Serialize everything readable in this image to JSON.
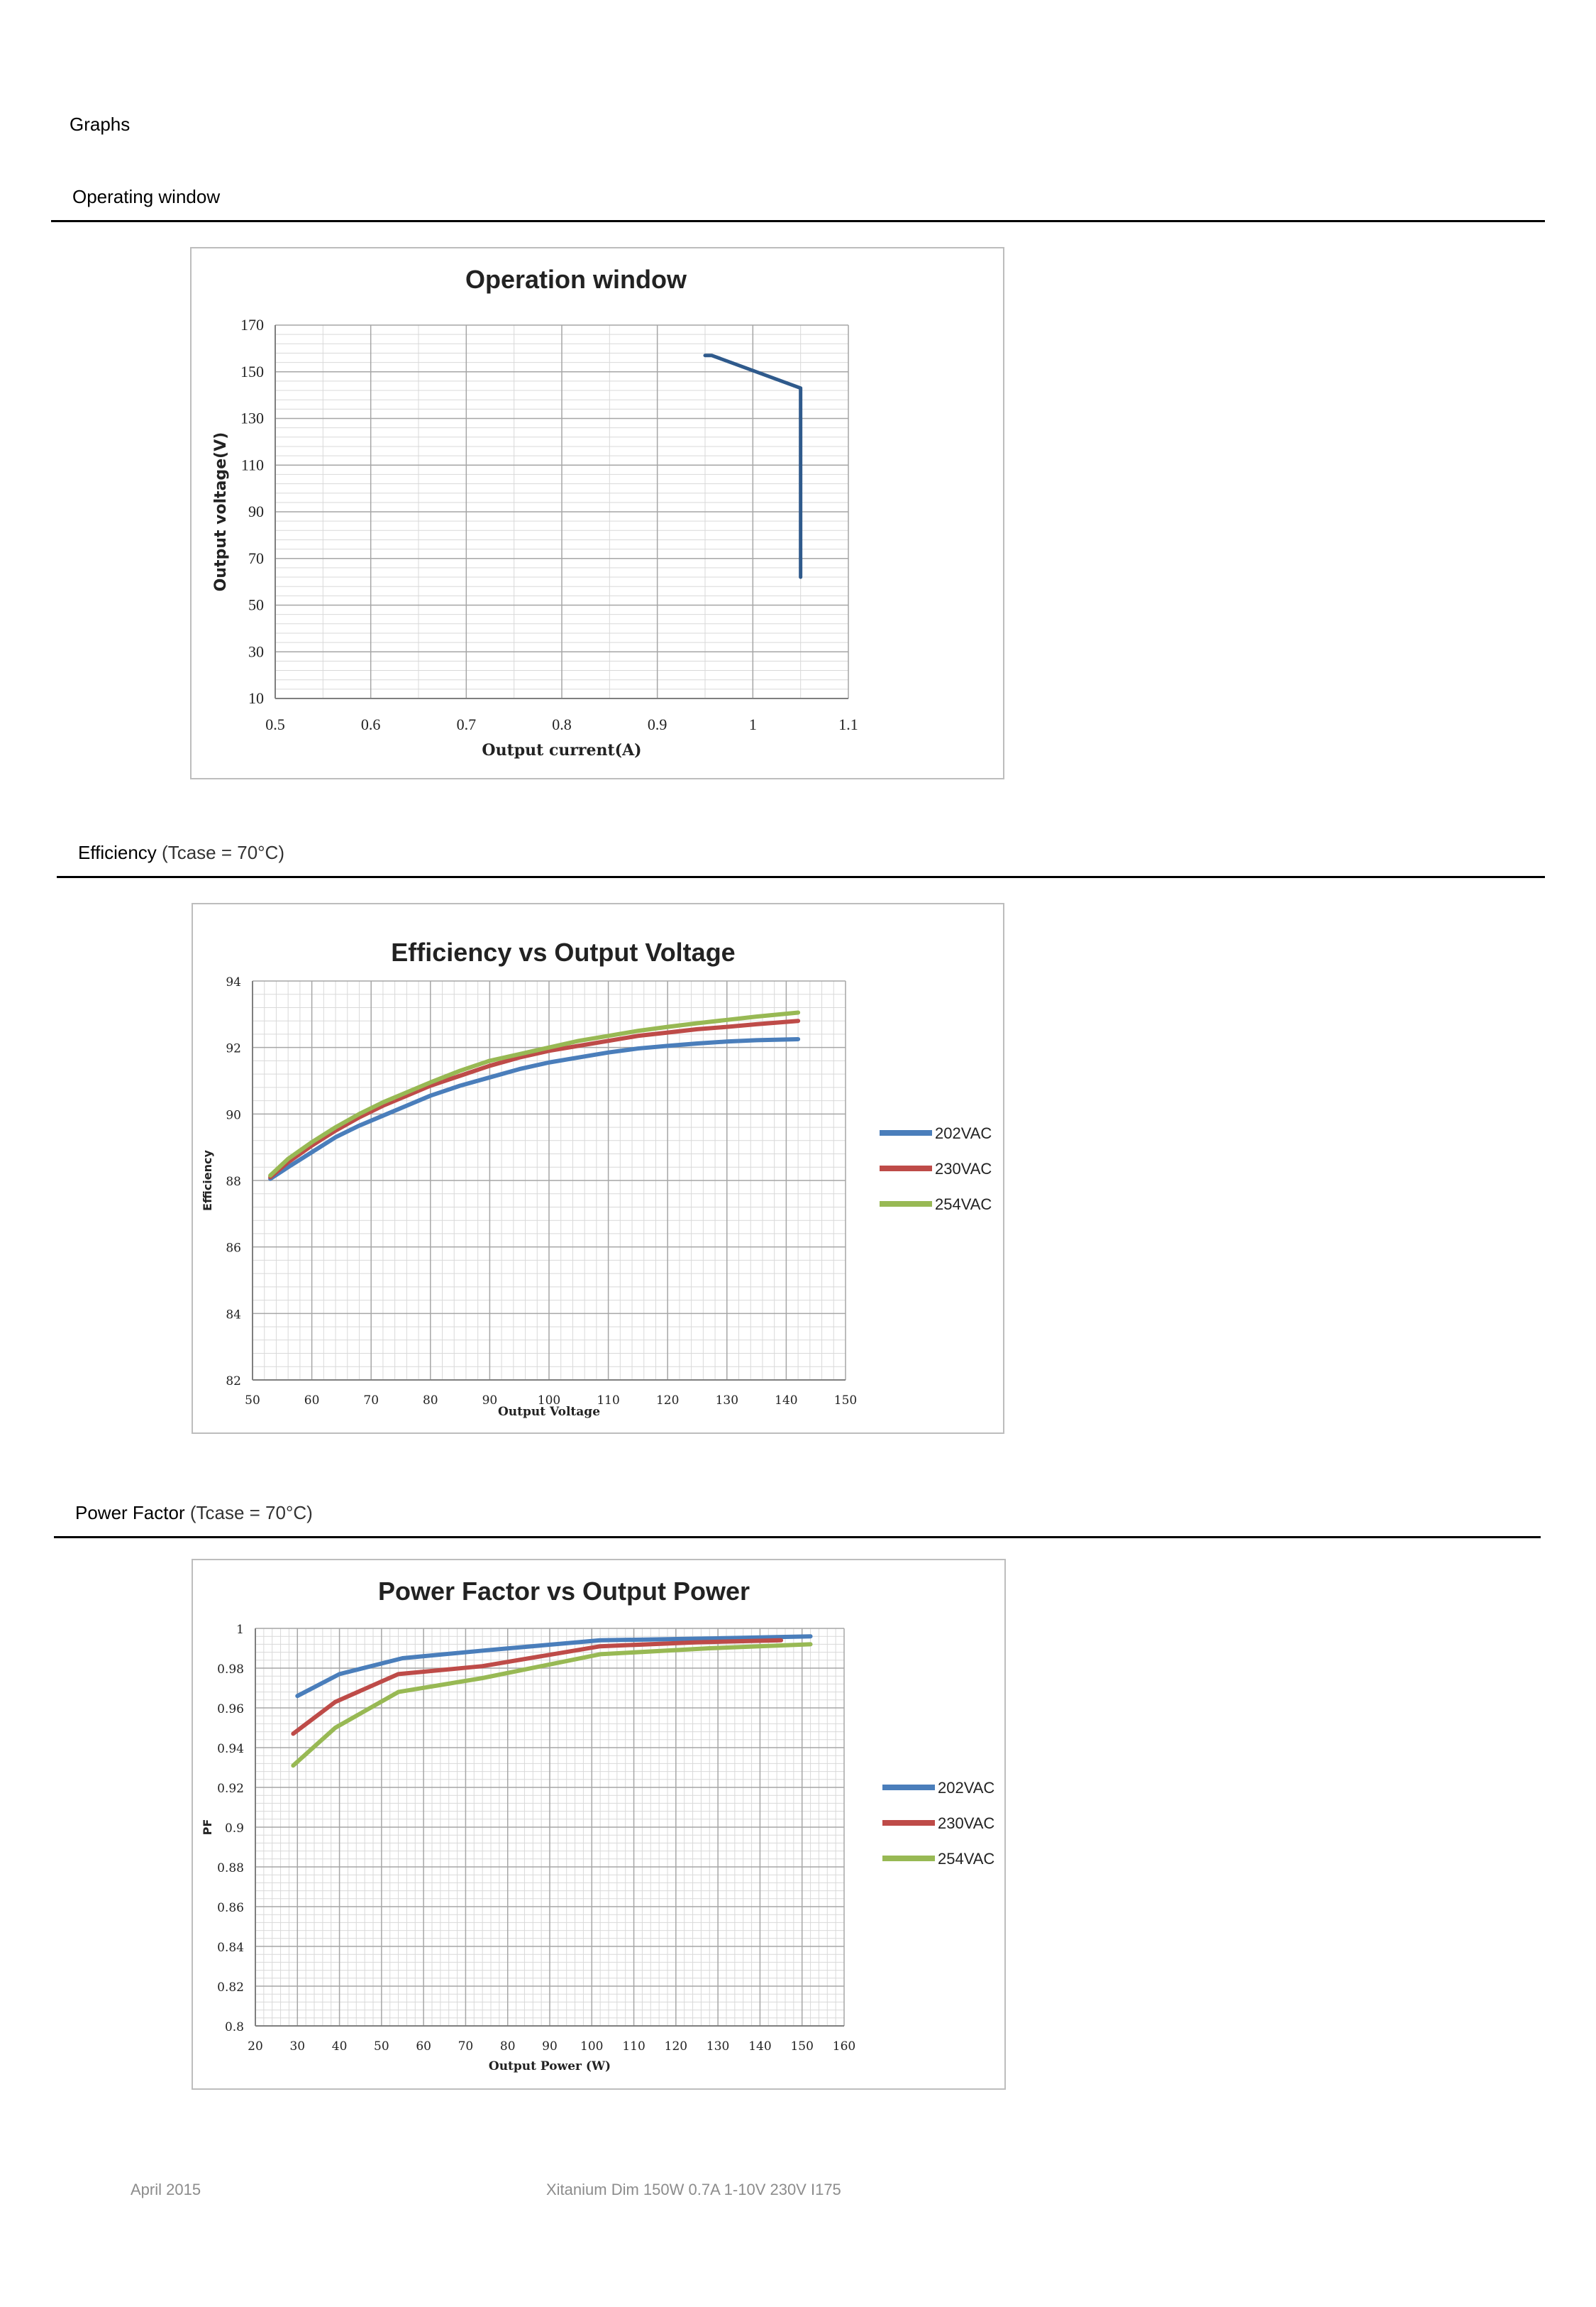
{
  "page": {
    "section_title": "Graphs",
    "headings": {
      "operating": {
        "label": "Operating window",
        "condition": ""
      },
      "efficiency": {
        "label": "Efficiency",
        "condition": "(Tcase = 70°C)"
      },
      "power_factor": {
        "label": "Power Factor",
        "condition": "(Tcase = 70°C)"
      }
    },
    "footer": {
      "date": "April 2015",
      "product": "Xitanium Dim 150W 0.7A 1-10V 230V I175"
    }
  },
  "colors": {
    "s202": "#4a7ebb",
    "s230": "#be4b48",
    "s254": "#98b954",
    "window": "#2f5a8c"
  },
  "chart_data": [
    {
      "type": "line",
      "title": "Operation window",
      "xlabel": "Output current(A)",
      "ylabel": "Output  voltage(V)",
      "xlim": [
        0.5,
        1.1
      ],
      "ylim": [
        10,
        170
      ],
      "xticks": [
        0.5,
        0.6,
        0.7,
        0.8,
        0.9,
        1,
        1.1
      ],
      "yticks": [
        10,
        30,
        50,
        70,
        90,
        110,
        130,
        150,
        170
      ],
      "legend": "none",
      "grid": true,
      "series": [
        {
          "name": "",
          "x": [
            0.95,
            0.957,
            1.05,
            1.05
          ],
          "y": [
            157,
            157,
            143,
            62
          ]
        }
      ]
    },
    {
      "type": "line",
      "title": "Efficiency vs Output Voltage",
      "xlabel": "Output Voltage",
      "ylabel": "Efficiency",
      "xlim": [
        50,
        150
      ],
      "ylim": [
        82,
        94
      ],
      "xticks": [
        50,
        60,
        70,
        80,
        90,
        100,
        110,
        120,
        130,
        140,
        150
      ],
      "yticks": [
        82,
        84,
        86,
        88,
        90,
        92,
        94
      ],
      "legend": "right",
      "grid": true,
      "series": [
        {
          "name": "202VAC",
          "x": [
            53,
            56,
            60,
            64,
            68,
            72,
            76,
            80,
            85,
            90,
            95,
            100,
            105,
            110,
            115,
            120,
            125,
            130,
            135,
            142
          ],
          "y": [
            88.05,
            88.4,
            88.85,
            89.3,
            89.65,
            89.95,
            90.25,
            90.55,
            90.85,
            91.1,
            91.35,
            91.55,
            91.7,
            91.85,
            91.97,
            92.05,
            92.12,
            92.18,
            92.22,
            92.25
          ]
        },
        {
          "name": "230VAC",
          "x": [
            53,
            56,
            60,
            64,
            68,
            72,
            76,
            80,
            85,
            90,
            95,
            100,
            105,
            110,
            115,
            120,
            125,
            130,
            135,
            142
          ],
          "y": [
            88.1,
            88.55,
            89.05,
            89.5,
            89.9,
            90.25,
            90.55,
            90.85,
            91.15,
            91.45,
            91.7,
            91.9,
            92.05,
            92.2,
            92.35,
            92.45,
            92.55,
            92.62,
            92.7,
            92.8
          ]
        },
        {
          "name": "254VAC",
          "x": [
            53,
            56,
            60,
            64,
            68,
            72,
            76,
            80,
            85,
            90,
            95,
            100,
            105,
            110,
            115,
            120,
            125,
            130,
            135,
            142
          ],
          "y": [
            88.15,
            88.65,
            89.15,
            89.6,
            90.0,
            90.35,
            90.65,
            90.95,
            91.3,
            91.6,
            91.8,
            92.0,
            92.2,
            92.35,
            92.5,
            92.62,
            92.73,
            92.83,
            92.93,
            93.05
          ]
        }
      ]
    },
    {
      "type": "line",
      "title": "Power Factor vs Output Power",
      "xlabel": "Output Power (W)",
      "ylabel": "PF",
      "xlim": [
        20,
        160
      ],
      "ylim": [
        0.8,
        1
      ],
      "xticks": [
        20,
        30,
        40,
        50,
        60,
        70,
        80,
        90,
        100,
        110,
        120,
        130,
        140,
        150,
        160
      ],
      "yticks": [
        0.8,
        0.82,
        0.84,
        0.86,
        0.88,
        0.9,
        0.92,
        0.94,
        0.96,
        0.98,
        1
      ],
      "ytick_labels": [
        "0.8",
        "0.82",
        "0.84",
        "0.86",
        "0.88",
        "0.9",
        "0.92",
        "0.94",
        "0.96",
        "0.98",
        "1"
      ],
      "legend": "right",
      "grid": true,
      "series": [
        {
          "name": "202VAC",
          "x": [
            30,
            40,
            55,
            75,
            102,
            130,
            152
          ],
          "y": [
            0.966,
            0.977,
            0.985,
            0.989,
            0.994,
            0.995,
            0.996
          ]
        },
        {
          "name": "230VAC",
          "x": [
            29,
            39,
            54,
            74,
            102,
            125,
            145
          ],
          "y": [
            0.947,
            0.963,
            0.977,
            0.981,
            0.991,
            0.993,
            0.994
          ]
        },
        {
          "name": "254VAC",
          "x": [
            29,
            39,
            54,
            74,
            102,
            128,
            152
          ],
          "y": [
            0.931,
            0.95,
            0.968,
            0.975,
            0.987,
            0.99,
            0.992
          ]
        }
      ]
    }
  ]
}
